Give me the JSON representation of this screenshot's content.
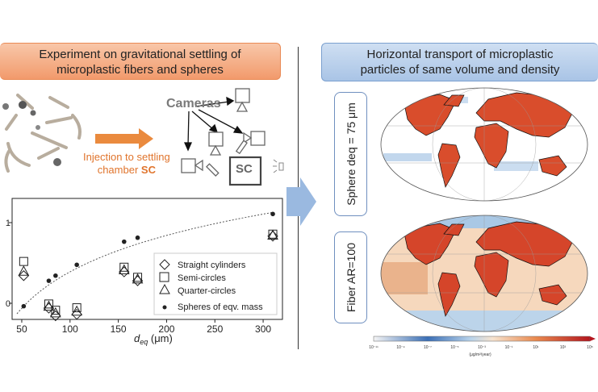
{
  "left_panel": {
    "title_line1": "Experiment on gravitational settling of",
    "title_line2": "microplastic fibers and spheres",
    "cameras_label": "Cameras",
    "injection_line1": "Injection to settling",
    "injection_line2": "chamber",
    "injection_sc": "SC",
    "chamber_label": "SC"
  },
  "right_panel": {
    "title_line1": "Horizontal transport of microplastic",
    "title_line2": "particles of same volume and density",
    "sphere_label": "Sphere deq = 75 μm",
    "fiber_label": "Fiber AR=100",
    "colorbar_ticks": [
      "10⁻¹¹",
      "10⁻⁹",
      "10⁻⁷",
      "10⁻⁵",
      "10⁻³",
      "10⁻¹",
      "10¹",
      "10³",
      "10⁵"
    ],
    "colorbar_unit": "(μg/m²/year)"
  },
  "chart_data": {
    "type": "scatter",
    "xlabel": "d_eq (μm)",
    "x_ticks": [
      50,
      100,
      150,
      200,
      250,
      300
    ],
    "xlim": [
      40,
      320
    ],
    "y_scale": "log",
    "y_ticks_visible": [
      "0",
      "1"
    ],
    "legend_position": "lower-right",
    "series": [
      {
        "name": "Straight cylinders",
        "marker": "diamond",
        "x": [
          52,
          78,
          85,
          107,
          156,
          170,
          310
        ],
        "y": [
          0.22,
          0.087,
          0.07,
          0.073,
          0.245,
          0.19,
          0.68
        ]
      },
      {
        "name": "Semi-circles",
        "marker": "square",
        "x": [
          52,
          78,
          85,
          107,
          156,
          170,
          310
        ],
        "y": [
          0.33,
          0.098,
          0.082,
          0.088,
          0.28,
          0.21,
          0.72
        ]
      },
      {
        "name": "Quarter-circles",
        "marker": "triangle",
        "x": [
          52,
          78,
          85,
          107,
          156,
          170,
          310
        ],
        "y": [
          0.25,
          0.092,
          0.076,
          0.08,
          0.26,
          0.2,
          0.7
        ]
      },
      {
        "name": "Spheres of eqv. mass",
        "marker": "dot",
        "x": [
          52,
          78,
          85,
          107,
          156,
          170,
          310
        ],
        "y": [
          0.092,
          0.19,
          0.22,
          0.3,
          0.58,
          0.65,
          1.28
        ]
      }
    ]
  }
}
